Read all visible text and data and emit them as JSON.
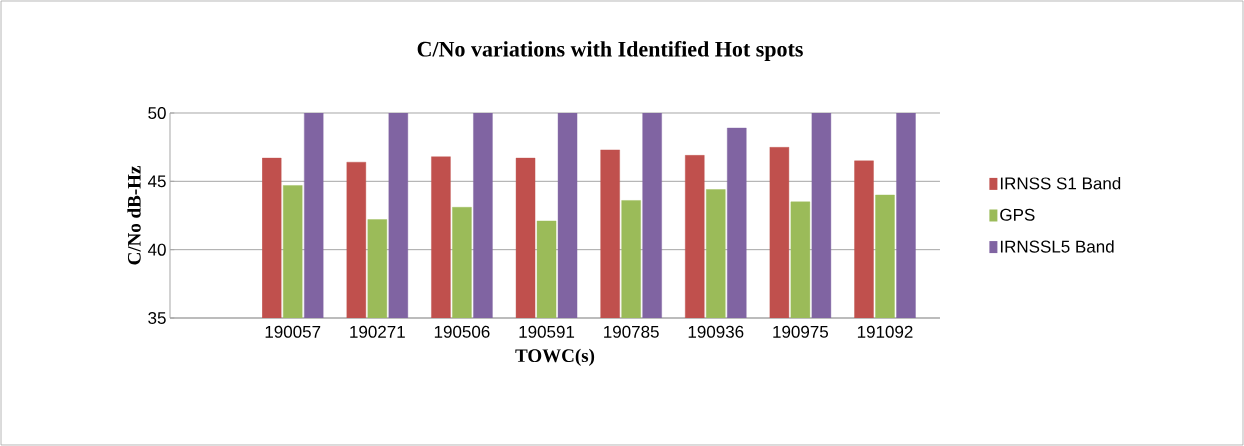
{
  "chart_data": {
    "type": "bar",
    "title": "C/No variations with Identified Hot spots",
    "xlabel": "TOWC(s)",
    "ylabel": "C/No dB-Hz",
    "categories": [
      "190057",
      "190271",
      "190506",
      "190591",
      "190785",
      "190936",
      "190975",
      "191092"
    ],
    "series": [
      {
        "name": "IRNSS S1 Band",
        "color": "#c0504d",
        "values": [
          46.7,
          46.4,
          46.8,
          46.7,
          47.3,
          46.9,
          47.5,
          46.5
        ]
      },
      {
        "name": "GPS",
        "color": "#9bbb59",
        "values": [
          44.7,
          42.2,
          43.1,
          42.1,
          43.6,
          44.4,
          43.5,
          44.0
        ]
      },
      {
        "name": "IRNSSL5 Band",
        "color": "#8064a2",
        "values": [
          50,
          50,
          50,
          50,
          50,
          48.9,
          50,
          50
        ]
      }
    ],
    "ylim": [
      35,
      50
    ],
    "yticks": [
      35,
      40,
      45,
      50
    ],
    "grid": "y",
    "legend": "right"
  }
}
